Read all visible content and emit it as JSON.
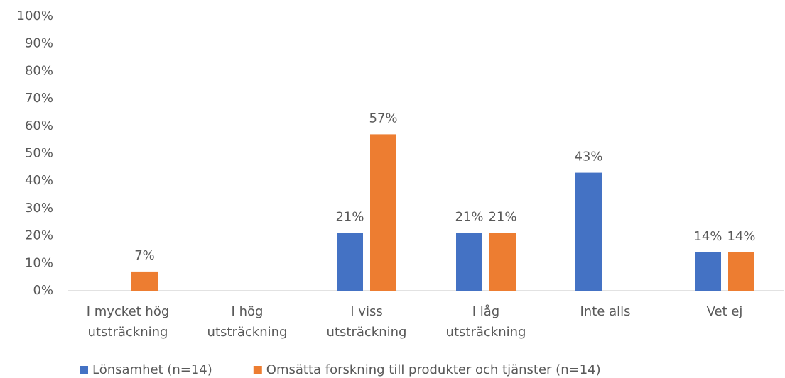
{
  "chart_data": {
    "type": "bar",
    "categories": [
      [
        "I mycket hög",
        "utsträckning"
      ],
      [
        "I hög",
        "utsträckning"
      ],
      [
        "I viss",
        "utsträckning"
      ],
      [
        "I låg",
        "utsträckning"
      ],
      [
        "Inte alls"
      ],
      [
        "Vet ej"
      ]
    ],
    "series": [
      {
        "name": "Lönsamhet (n=14)",
        "color": "#4472c4",
        "values": [
          null,
          null,
          21,
          21,
          43,
          14
        ],
        "value_labels": [
          null,
          null,
          "21%",
          "21%",
          "43%",
          "14%"
        ]
      },
      {
        "name": "Omsätta forskning till produkter och tjänster (n=14)",
        "color": "#ed7d31",
        "values": [
          7,
          null,
          57,
          21,
          null,
          14
        ],
        "value_labels": [
          "7%",
          null,
          "57%",
          "21%",
          null,
          "14%"
        ]
      }
    ],
    "ylim": [
      0,
      100
    ],
    "yticks": [
      {
        "value": 0,
        "label": "0%"
      },
      {
        "value": 10,
        "label": "10%"
      },
      {
        "value": 20,
        "label": "20%"
      },
      {
        "value": 30,
        "label": "30%"
      },
      {
        "value": 40,
        "label": "40%"
      },
      {
        "value": 50,
        "label": "50%"
      },
      {
        "value": 60,
        "label": "60%"
      },
      {
        "value": 70,
        "label": "70%"
      },
      {
        "value": 80,
        "label": "80%"
      },
      {
        "value": 90,
        "label": "90%"
      },
      {
        "value": 100,
        "label": "100%"
      }
    ],
    "grid": false,
    "legend": "bottom"
  }
}
